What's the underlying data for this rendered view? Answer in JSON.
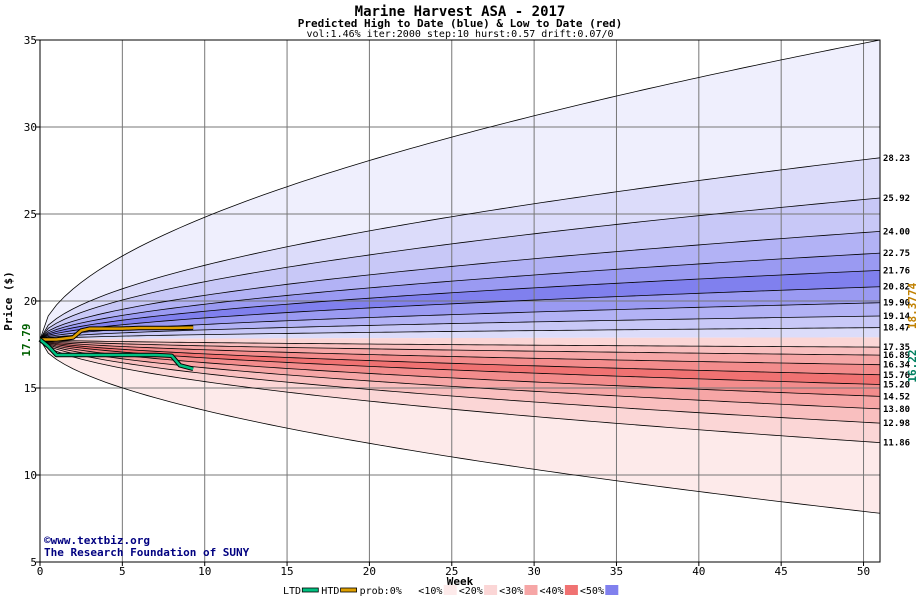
{
  "chart_data": {
    "type": "area",
    "title": "Marine Harvest ASA - 2017",
    "subtitle": "Predicted High to Date (blue) &  Low to Date (red)",
    "params": "vol:1.46% iter:2000 step:10 hurst:0.57 drift:0.07/0",
    "xlabel": "Week",
    "ylabel": "Price ($)",
    "xlim": [
      0,
      51
    ],
    "ylim": [
      5,
      35
    ],
    "x_ticks": [
      "0",
      "5",
      "10",
      "15",
      "20",
      "25",
      "30",
      "35",
      "40",
      "45",
      "50"
    ],
    "y_ticks": [
      "5",
      "10",
      "15",
      "20",
      "25",
      "30",
      "35"
    ],
    "grid": true,
    "start_price": "17.79",
    "start_label": "17.79",
    "right_current_labels": [
      "16.22",
      "18.3774"
    ],
    "brand_lines": [
      "©www.textbiz.org",
      "The Research Foundation of SUNY"
    ],
    "high_curves": [
      {
        "label": "28.23",
        "end": 28.23
      },
      {
        "label": "25.92",
        "end": 25.92
      },
      {
        "label": "24.00",
        "end": 24.0
      },
      {
        "label": "22.75",
        "end": 22.75
      },
      {
        "label": "21.76",
        "end": 21.76
      },
      {
        "label": "20.82",
        "end": 20.82
      },
      {
        "label": "19.90",
        "end": 19.9
      },
      {
        "label": "19.14",
        "end": 19.14
      },
      {
        "label": "18.47",
        "end": 18.47
      }
    ],
    "low_curves": [
      {
        "label": "17.35",
        "end": 17.35
      },
      {
        "label": "16.89",
        "end": 16.89
      },
      {
        "label": "16.34",
        "end": 16.34
      },
      {
        "label": "15.76",
        "end": 15.76
      },
      {
        "label": "15.20",
        "end": 15.2
      },
      {
        "label": "14.52",
        "end": 14.52
      },
      {
        "label": "13.80",
        "end": 13.8
      },
      {
        "label": "12.98",
        "end": 12.98
      },
      {
        "label": "11.86",
        "end": 11.86
      }
    ],
    "outer_high_end": 35,
    "outer_low_end": 7.8,
    "band_fills_high": [
      "#efeffd",
      "#dcdcfa",
      "#c8c8f7",
      "#b2b2f5",
      "#9a9af2",
      "#8080ee",
      "#9a9af2",
      "#b2b2f5",
      "#c8c8f7",
      "#dcdcfa"
    ],
    "band_fills_low": [
      "#fdeaea",
      "#fbd6d6",
      "#f9bfbf",
      "#f6a6a6",
      "#f38c8c",
      "#f07272",
      "#f38c8c",
      "#f6a6a6",
      "#f9bfbf",
      "#fbd6d6"
    ],
    "htd_series": {
      "name": "HTD",
      "color": "#e0a000",
      "x": [
        0,
        1,
        2,
        2.5,
        3,
        4,
        5,
        6,
        7,
        8,
        9,
        9.3
      ],
      "y": [
        17.79,
        17.79,
        17.9,
        18.3,
        18.41,
        18.41,
        18.41,
        18.45,
        18.45,
        18.45,
        18.47,
        18.47
      ]
    },
    "ltd_series": {
      "name": "LTD",
      "color": "#00c080",
      "x": [
        0,
        0.5,
        1,
        2,
        3,
        4,
        5,
        6,
        7,
        8,
        8.5,
        9.3
      ],
      "y": [
        17.79,
        17.4,
        16.9,
        16.9,
        16.9,
        16.9,
        16.9,
        16.9,
        16.9,
        16.85,
        16.3,
        16.1
      ]
    },
    "legend": {
      "items": [
        "LTD",
        "HTD",
        "prob:0%",
        "<10%",
        "<20%",
        "<30%",
        "<40%",
        "<50%"
      ],
      "colors": [
        "#00c080",
        "#e0a000",
        "#ffffff",
        "#fdeaea",
        "#fbd6d6",
        "#f6a6a6",
        "#f07272",
        "#8080ee"
      ]
    }
  }
}
